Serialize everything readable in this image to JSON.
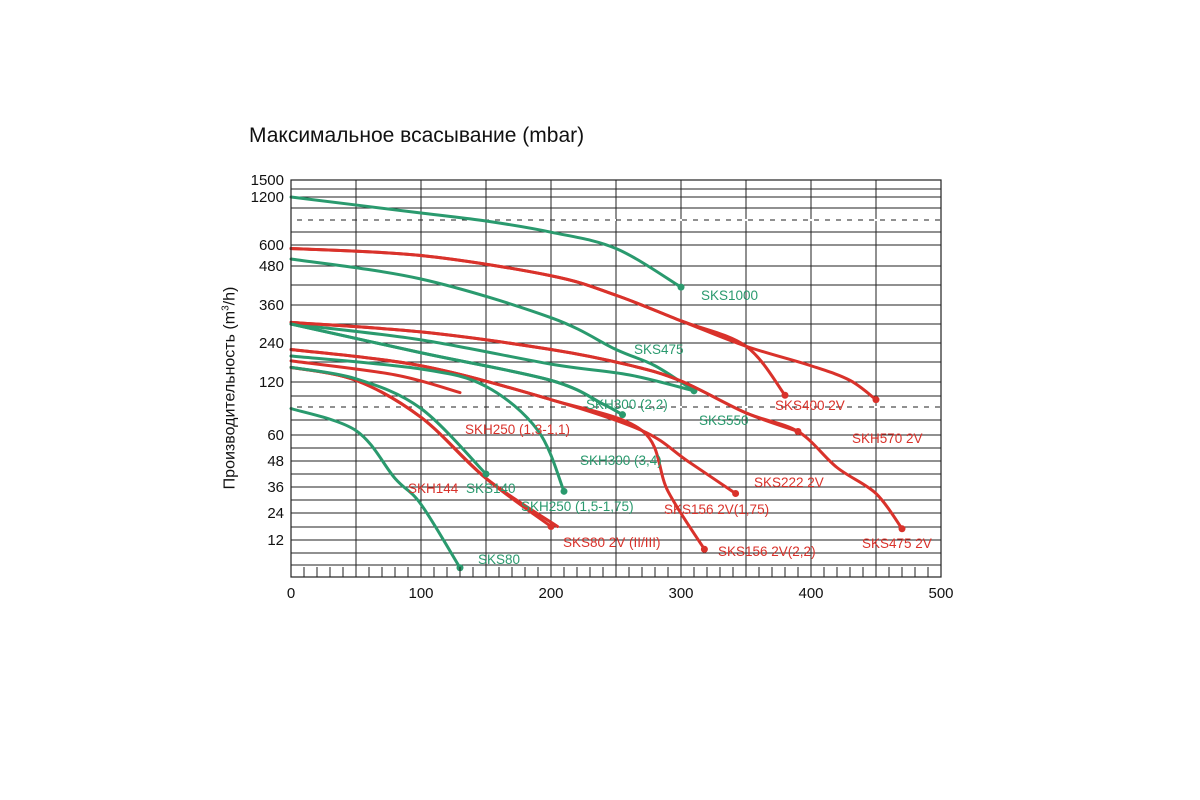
{
  "chart_data": {
    "type": "line",
    "title": "Максимальное всасывание (mbar)",
    "ylabel_parts": [
      "Производительность (m",
      "3",
      "/h)"
    ],
    "xlabel": "",
    "xlim": [
      0,
      500
    ],
    "x_ticks": [
      "0",
      "100",
      "200",
      "300",
      "400",
      "500"
    ],
    "y_ticks": [
      "1500",
      "1200",
      "600",
      "480",
      "360",
      "240",
      "120",
      "60",
      "48",
      "36",
      "24",
      "12"
    ],
    "grid": true,
    "colors": {
      "green": "#2a9a6e",
      "red": "#d9322b"
    },
    "series": [
      {
        "name": "SKS1000",
        "color": "green",
        "end_marker": true,
        "points": [
          [
            0,
            1200
          ],
          [
            100,
            1000
          ],
          [
            150,
            900
          ],
          [
            200,
            760
          ],
          [
            250,
            580
          ],
          [
            300,
            415
          ]
        ]
      },
      {
        "name": "SKS400 2V",
        "color": "red",
        "end_marker": true,
        "points": [
          [
            0,
            580
          ],
          [
            100,
            540
          ],
          [
            200,
            450
          ],
          [
            250,
            390
          ],
          [
            300,
            310
          ],
          [
            350,
            230
          ],
          [
            380,
            105
          ]
        ]
      },
      {
        "name": "SKH570 2V",
        "color": "red",
        "end_marker": true,
        "points": [
          [
            0,
            580
          ],
          [
            100,
            540
          ],
          [
            200,
            450
          ],
          [
            250,
            390
          ],
          [
            300,
            310
          ],
          [
            350,
            230
          ],
          [
            400,
            170
          ],
          [
            430,
            125
          ],
          [
            450,
            100
          ]
        ]
      },
      {
        "name": "SKS550",
        "color": "green",
        "end_marker": true,
        "points": [
          [
            0,
            520
          ],
          [
            100,
            440
          ],
          [
            200,
            320
          ],
          [
            250,
            220
          ],
          [
            280,
            170
          ],
          [
            310,
            110
          ]
        ]
      },
      {
        "name": "SKS475",
        "color": "green",
        "end_marker": false,
        "points": [
          [
            0,
            300
          ],
          [
            100,
            250
          ],
          [
            200,
            175
          ],
          [
            260,
            142
          ],
          [
            310,
            110
          ]
        ]
      },
      {
        "name": "SKS222 2V",
        "color": "red",
        "end_marker": true,
        "points": [
          [
            0,
            305
          ],
          [
            100,
            275
          ],
          [
            200,
            220
          ],
          [
            260,
            172
          ],
          [
            300,
            123
          ],
          [
            350,
            85
          ],
          [
            390,
            64
          ]
        ]
      },
      {
        "name": "SKS475 2V",
        "color": "red",
        "end_marker": true,
        "points": [
          [
            0,
            305
          ],
          [
            100,
            275
          ],
          [
            200,
            220
          ],
          [
            260,
            172
          ],
          [
            300,
            123
          ],
          [
            350,
            85
          ],
          [
            390,
            64
          ],
          [
            420,
            45
          ],
          [
            450,
            33
          ],
          [
            470,
            17
          ]
        ]
      },
      {
        "name": "SKH300 (2,2)",
        "color": "green",
        "end_marker": false,
        "points": [
          [
            0,
            300
          ],
          [
            100,
            210
          ],
          [
            200,
            125
          ],
          [
            240,
            95
          ],
          [
            255,
            83
          ]
        ]
      },
      {
        "name": "SKH300 (3,4)",
        "color": "green",
        "end_marker": true,
        "points": [
          [
            0,
            300
          ],
          [
            100,
            210
          ],
          [
            200,
            125
          ],
          [
            240,
            95
          ],
          [
            255,
            83
          ]
        ]
      },
      {
        "name": "SKS156 2V(1,75)",
        "color": "red",
        "end_marker": true,
        "points": [
          [
            0,
            220
          ],
          [
            100,
            170
          ],
          [
            200,
            100
          ],
          [
            270,
            65
          ],
          [
            305,
            48
          ],
          [
            342,
            33
          ]
        ]
      },
      {
        "name": "SKS156 2V(2,2)",
        "color": "red",
        "end_marker": true,
        "points": [
          [
            0,
            220
          ],
          [
            100,
            170
          ],
          [
            200,
            100
          ],
          [
            270,
            65
          ],
          [
            290,
            34
          ],
          [
            318,
            9
          ]
        ]
      },
      {
        "name": "SKH250 (1,3-1,1)",
        "color": "red",
        "end_marker": false,
        "points": [
          [
            0,
            185
          ],
          [
            80,
            142
          ],
          [
            130,
            108
          ]
        ]
      },
      {
        "name": "SKH250 (1,5-1,75)",
        "color": "green",
        "end_marker": true,
        "points": [
          [
            0,
            200
          ],
          [
            100,
            160
          ],
          [
            150,
            115
          ],
          [
            190,
            65
          ],
          [
            210,
            34
          ]
        ]
      },
      {
        "name": "SKH144",
        "color": "red",
        "end_marker": false,
        "points": [
          [
            0,
            165
          ],
          [
            50,
            125
          ],
          [
            100,
            80
          ],
          [
            150,
            40
          ],
          [
            205,
            18
          ]
        ]
      },
      {
        "name": "SKS80 2V (II/III)",
        "color": "red",
        "end_marker": true,
        "points": [
          [
            0,
            165
          ],
          [
            50,
            125
          ],
          [
            100,
            80
          ],
          [
            150,
            40
          ],
          [
            200,
            18
          ]
        ]
      },
      {
        "name": "SKS140",
        "color": "green",
        "end_marker": true,
        "points": [
          [
            0,
            165
          ],
          [
            50,
            130
          ],
          [
            100,
            90
          ],
          [
            150,
            42
          ]
        ]
      },
      {
        "name": "SKS80",
        "color": "green",
        "end_marker": true,
        "points": [
          [
            0,
            90
          ],
          [
            50,
            65
          ],
          [
            80,
            40
          ],
          [
            100,
            28
          ],
          [
            130,
            3
          ]
        ]
      }
    ]
  }
}
